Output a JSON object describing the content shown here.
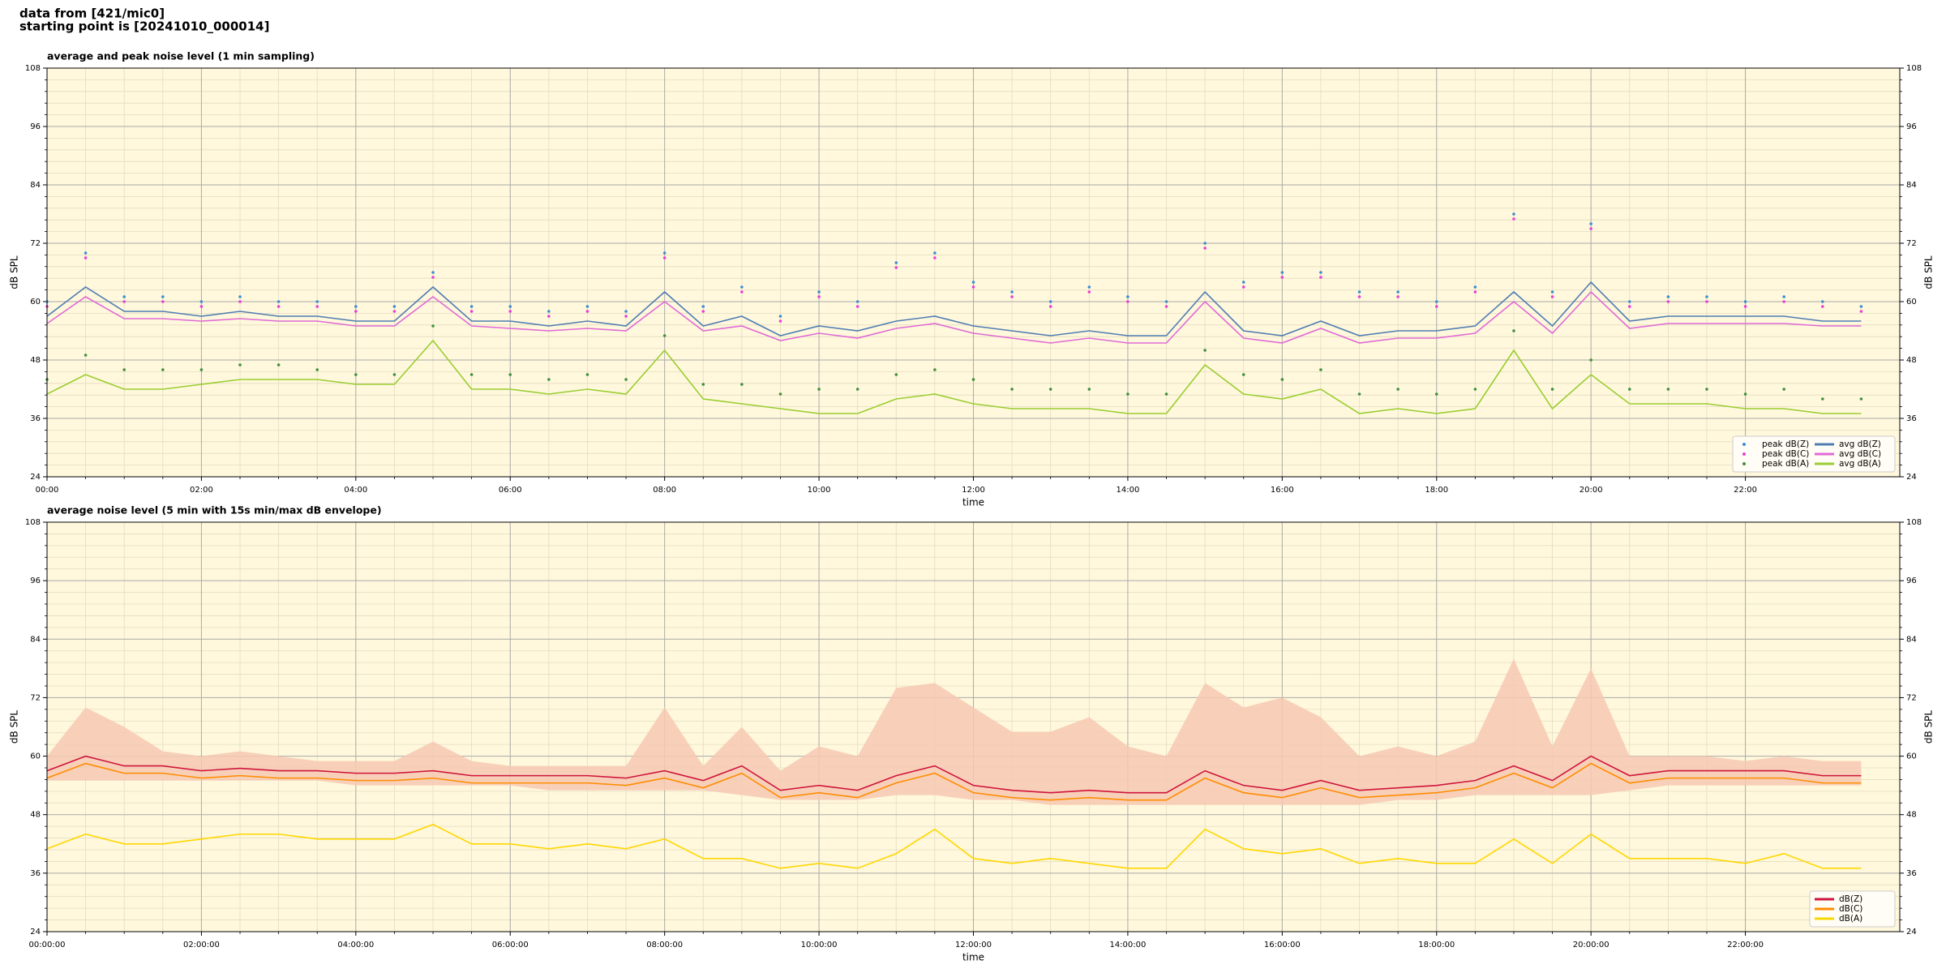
{
  "header": {
    "line1": "data from [421/mic0]",
    "line2": "starting point is [20241010_000014]"
  },
  "chart_data": [
    {
      "type": "line",
      "title": "average and peak noise level (1 min sampling)",
      "xlabel": "time",
      "ylabel": "dB SPL",
      "background": "#fff8dc",
      "grid": true,
      "legend": "lower right",
      "legend_columns": 2,
      "xlim": [
        0,
        24
      ],
      "ylim": [
        24,
        108
      ],
      "yticks": [
        24,
        36,
        48,
        60,
        72,
        84,
        96,
        108
      ],
      "xticks": [
        {
          "value": 0,
          "label": "00:00"
        },
        {
          "value": 2,
          "label": "02:00"
        },
        {
          "value": 4,
          "label": "04:00"
        },
        {
          "value": 6,
          "label": "06:00"
        },
        {
          "value": 8,
          "label": "08:00"
        },
        {
          "value": 10,
          "label": "10:00"
        },
        {
          "value": 12,
          "label": "12:00"
        },
        {
          "value": 14,
          "label": "14:00"
        },
        {
          "value": 16,
          "label": "16:00"
        },
        {
          "value": 18,
          "label": "18:00"
        },
        {
          "value": 20,
          "label": "20:00"
        },
        {
          "value": 22,
          "label": "22:00"
        }
      ],
      "x": [
        0,
        0.5,
        1,
        1.5,
        2,
        2.5,
        3,
        3.5,
        4,
        4.5,
        5,
        5.5,
        6,
        6.5,
        7,
        7.5,
        8,
        8.5,
        9,
        9.5,
        10,
        10.5,
        11,
        11.5,
        12,
        12.5,
        13,
        13.5,
        14,
        14.5,
        15,
        15.5,
        16,
        16.5,
        17,
        17.5,
        18,
        18.5,
        19,
        19.5,
        20,
        20.5,
        21,
        21.5,
        22,
        22.5,
        23,
        23.5
      ],
      "series": [
        {
          "name": "peak dB(Z)",
          "type": "scatter",
          "color": "#3b8fd1",
          "values": [
            60,
            70,
            61,
            61,
            60,
            61,
            60,
            60,
            59,
            59,
            66,
            59,
            59,
            58,
            59,
            58,
            70,
            59,
            63,
            57,
            62,
            60,
            68,
            70,
            64,
            62,
            60,
            63,
            61,
            60,
            72,
            64,
            66,
            66,
            62,
            62,
            60,
            63,
            78,
            62,
            76,
            60,
            61,
            61,
            60,
            61,
            60,
            59
          ]
        },
        {
          "name": "peak dB(C)",
          "type": "scatter",
          "color": "#e83fd8",
          "values": [
            59,
            69,
            60,
            60,
            59,
            60,
            59,
            59,
            58,
            58,
            65,
            58,
            58,
            57,
            58,
            57,
            69,
            58,
            62,
            56,
            61,
            59,
            67,
            69,
            63,
            61,
            59,
            62,
            60,
            59,
            71,
            63,
            65,
            65,
            61,
            61,
            59,
            62,
            77,
            61,
            75,
            59,
            60,
            60,
            59,
            60,
            59,
            58
          ]
        },
        {
          "name": "peak dB(A)",
          "type": "scatter",
          "color": "#3f8f3f",
          "values": [
            44,
            49,
            46,
            46,
            46,
            47,
            47,
            46,
            45,
            45,
            55,
            45,
            45,
            44,
            45,
            44,
            53,
            43,
            43,
            41,
            42,
            42,
            45,
            46,
            44,
            42,
            42,
            42,
            41,
            41,
            50,
            45,
            44,
            46,
            41,
            42,
            41,
            42,
            54,
            42,
            48,
            42,
            42,
            42,
            41,
            42,
            40,
            40
          ]
        },
        {
          "name": "avg dB(Z)",
          "type": "line",
          "color": "#4f7db3",
          "values": [
            57,
            63,
            58,
            58,
            57,
            58,
            57,
            57,
            56,
            56,
            63,
            56,
            56,
            55,
            56,
            55,
            62,
            55,
            57,
            53,
            55,
            54,
            56,
            57,
            55,
            54,
            53,
            54,
            53,
            53,
            62,
            54,
            53,
            56,
            53,
            54,
            54,
            55,
            62,
            55,
            64,
            56,
            57,
            57,
            57,
            57,
            56,
            56
          ]
        },
        {
          "name": "avg dB(C)",
          "type": "line",
          "color": "#e06ad6",
          "values": [
            55.5,
            61,
            56.5,
            56.5,
            56,
            56.5,
            56,
            56,
            55,
            55,
            61,
            55,
            54.5,
            54,
            54.5,
            54,
            60,
            54,
            55,
            52,
            53.5,
            52.5,
            54.5,
            55.5,
            53.5,
            52.5,
            51.5,
            52.5,
            51.5,
            51.5,
            60,
            52.5,
            51.5,
            54.5,
            51.5,
            52.5,
            52.5,
            53.5,
            60,
            53.5,
            62,
            54.5,
            55.5,
            55.5,
            55.5,
            55.5,
            55,
            55
          ]
        },
        {
          "name": "avg dB(A)",
          "type": "line",
          "color": "#9acd32",
          "values": [
            41,
            45,
            42,
            42,
            43,
            44,
            44,
            44,
            43,
            43,
            52,
            42,
            42,
            41,
            42,
            41,
            50,
            40,
            39,
            38,
            37,
            37,
            40,
            41,
            39,
            38,
            38,
            38,
            37,
            37,
            47,
            41,
            40,
            42,
            37,
            38,
            37,
            38,
            50,
            38,
            45,
            39,
            39,
            39,
            38,
            38,
            37,
            37
          ]
        }
      ]
    },
    {
      "type": "line",
      "title": "average noise level (5 min with 15s min/max dB envelope)",
      "xlabel": "time",
      "ylabel": "dB SPL",
      "background": "#fff8dc",
      "grid": true,
      "legend": "lower right",
      "legend_columns": 1,
      "xlim": [
        0,
        24
      ],
      "ylim": [
        24,
        108
      ],
      "yticks": [
        24,
        36,
        48,
        60,
        72,
        84,
        96,
        108
      ],
      "xticks": [
        {
          "value": 0,
          "label": "00:00:00"
        },
        {
          "value": 2,
          "label": "02:00:00"
        },
        {
          "value": 4,
          "label": "04:00:00"
        },
        {
          "value": 6,
          "label": "06:00:00"
        },
        {
          "value": 8,
          "label": "08:00:00"
        },
        {
          "value": 10,
          "label": "10:00:00"
        },
        {
          "value": 12,
          "label": "12:00:00"
        },
        {
          "value": 14,
          "label": "14:00:00"
        },
        {
          "value": 16,
          "label": "16:00:00"
        },
        {
          "value": 18,
          "label": "18:00:00"
        },
        {
          "value": 20,
          "label": "20:00:00"
        },
        {
          "value": 22,
          "label": "22:00:00"
        }
      ],
      "x": [
        0,
        0.5,
        1,
        1.5,
        2,
        2.5,
        3,
        3.5,
        4,
        4.5,
        5,
        5.5,
        6,
        6.5,
        7,
        7.5,
        8,
        8.5,
        9,
        9.5,
        10,
        10.5,
        11,
        11.5,
        12,
        12.5,
        13,
        13.5,
        14,
        14.5,
        15,
        15.5,
        16,
        16.5,
        17,
        17.5,
        18,
        18.5,
        19,
        19.5,
        20,
        20.5,
        21,
        21.5,
        22,
        22.5,
        23,
        23.5
      ],
      "band": {
        "color": "#f7c9b3",
        "upper": [
          60,
          70,
          66,
          61,
          60,
          61,
          60,
          59,
          59,
          59,
          63,
          59,
          58,
          58,
          58,
          58,
          70,
          58,
          66,
          57,
          62,
          60,
          74,
          75,
          70,
          65,
          65,
          68,
          62,
          60,
          75,
          70,
          72,
          68,
          60,
          62,
          60,
          63,
          80,
          62,
          78,
          60,
          60,
          60,
          59,
          60,
          59,
          59
        ],
        "lower": [
          55,
          55,
          55,
          55,
          55,
          55,
          55,
          55,
          54,
          54,
          54,
          54,
          54,
          53,
          53,
          53,
          53,
          53,
          52,
          51,
          51,
          51,
          52,
          52,
          51,
          51,
          50,
          50,
          50,
          50,
          50,
          50,
          50,
          50,
          50,
          51,
          51,
          52,
          52,
          52,
          52,
          53,
          54,
          54,
          54,
          54,
          54,
          54
        ]
      },
      "series": [
        {
          "name": "dB(Z)",
          "type": "line",
          "color": "#d0143c",
          "values": [
            57,
            60,
            58,
            58,
            57,
            57.5,
            57,
            57,
            56.5,
            56.5,
            57,
            56,
            56,
            56,
            56,
            55.5,
            57,
            55,
            58,
            53,
            54,
            53,
            56,
            58,
            54,
            53,
            52.5,
            53,
            52.5,
            52.5,
            57,
            54,
            53,
            55,
            53,
            53.5,
            54,
            55,
            58,
            55,
            60,
            56,
            57,
            57,
            57,
            57,
            56,
            56
          ]
        },
        {
          "name": "dB(C)",
          "type": "line",
          "color": "#ff8c00",
          "values": [
            55.5,
            58.5,
            56.5,
            56.5,
            55.5,
            56,
            55.5,
            55.5,
            55,
            55,
            55.5,
            54.5,
            54.5,
            54.5,
            54.5,
            54,
            55.5,
            53.5,
            56.5,
            51.5,
            52.5,
            51.5,
            54.5,
            56.5,
            52.5,
            51.5,
            51,
            51.5,
            51,
            51,
            55.5,
            52.5,
            51.5,
            53.5,
            51.5,
            52,
            52.5,
            53.5,
            56.5,
            53.5,
            58.5,
            54.5,
            55.5,
            55.5,
            55.5,
            55.5,
            54.5,
            54.5
          ]
        },
        {
          "name": "dB(A)",
          "type": "line",
          "color": "#ffd700",
          "values": [
            41,
            44,
            42,
            42,
            43,
            44,
            44,
            43,
            43,
            43,
            46,
            42,
            42,
            41,
            42,
            41,
            43,
            39,
            39,
            37,
            38,
            37,
            40,
            45,
            39,
            38,
            39,
            38,
            37,
            37,
            45,
            41,
            40,
            41,
            38,
            39,
            38,
            38,
            43,
            38,
            44,
            39,
            39,
            39,
            38,
            40,
            37,
            37
          ]
        }
      ]
    }
  ]
}
